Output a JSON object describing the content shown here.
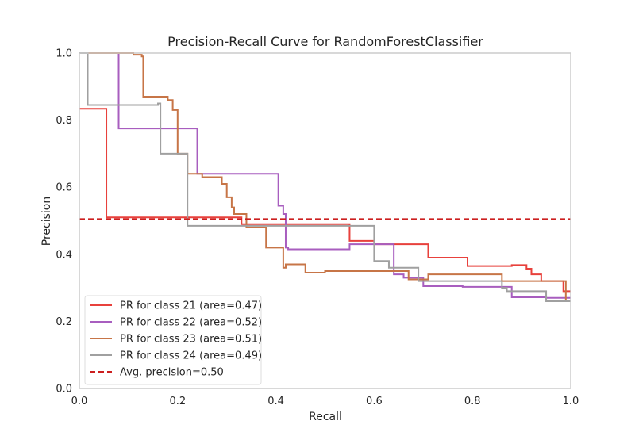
{
  "chart_data": {
    "type": "line",
    "title": "Precision-Recall Curve for RandomForestClassifier",
    "xlabel": "Recall",
    "ylabel": "Precision",
    "xlim": [
      0.0,
      1.0
    ],
    "ylim": [
      0.0,
      1.0
    ],
    "xticks": [
      "0.0",
      "0.2",
      "0.4",
      "0.6",
      "0.8",
      "1.0"
    ],
    "yticks": [
      "0.0",
      "0.2",
      "0.4",
      "0.6",
      "0.8",
      "1.0"
    ],
    "grid": false,
    "legend_position": "lower-left",
    "series": [
      {
        "name": "PR for class 21 (area=0.47)",
        "color": "#e8413c",
        "style": "step",
        "x": [
          0.0,
          0.055,
          0.055,
          0.33,
          0.33,
          0.55,
          0.55,
          0.6,
          0.6,
          0.71,
          0.71,
          0.79,
          0.79,
          0.88,
          0.88,
          0.91,
          0.91,
          0.92,
          0.92,
          0.94,
          0.94,
          0.985,
          0.985,
          1.0
        ],
        "y": [
          0.834,
          0.834,
          0.51,
          0.51,
          0.49,
          0.49,
          0.44,
          0.44,
          0.43,
          0.43,
          0.39,
          0.39,
          0.365,
          0.365,
          0.368,
          0.368,
          0.357,
          0.357,
          0.34,
          0.34,
          0.32,
          0.32,
          0.29,
          0.29
        ]
      },
      {
        "name": "PR for class 22 (area=0.52)",
        "color": "#a85ebf",
        "style": "step",
        "x": [
          0.0,
          0.08,
          0.08,
          0.24,
          0.24,
          0.405,
          0.405,
          0.415,
          0.415,
          0.42,
          0.42,
          0.425,
          0.425,
          0.55,
          0.55,
          0.64,
          0.64,
          0.66,
          0.66,
          0.7,
          0.7,
          0.78,
          0.78,
          0.88,
          0.88,
          0.95,
          0.95,
          0.985,
          0.985,
          1.0
        ],
        "y": [
          1.0,
          1.0,
          0.775,
          0.775,
          0.64,
          0.64,
          0.545,
          0.545,
          0.52,
          0.52,
          0.42,
          0.42,
          0.415,
          0.415,
          0.43,
          0.43,
          0.34,
          0.34,
          0.33,
          0.33,
          0.305,
          0.305,
          0.303,
          0.303,
          0.272,
          0.272,
          0.27,
          0.27,
          0.27,
          0.27
        ]
      },
      {
        "name": "PR for class 23 (area=0.51)",
        "color": "#c77547",
        "style": "step",
        "x": [
          0.0,
          0.11,
          0.11,
          0.127,
          0.127,
          0.13,
          0.13,
          0.18,
          0.18,
          0.19,
          0.19,
          0.2,
          0.2,
          0.22,
          0.22,
          0.25,
          0.25,
          0.29,
          0.29,
          0.3,
          0.3,
          0.31,
          0.31,
          0.315,
          0.315,
          0.34,
          0.34,
          0.38,
          0.38,
          0.415,
          0.415,
          0.42,
          0.42,
          0.46,
          0.46,
          0.5,
          0.5,
          0.67,
          0.67,
          0.71,
          0.71,
          0.86,
          0.86,
          0.99,
          0.99,
          1.0
        ],
        "y": [
          1.0,
          1.0,
          0.995,
          0.995,
          0.99,
          0.99,
          0.87,
          0.87,
          0.86,
          0.86,
          0.83,
          0.83,
          0.7,
          0.7,
          0.64,
          0.64,
          0.63,
          0.63,
          0.61,
          0.61,
          0.57,
          0.57,
          0.54,
          0.54,
          0.52,
          0.52,
          0.48,
          0.48,
          0.42,
          0.42,
          0.36,
          0.36,
          0.37,
          0.37,
          0.345,
          0.345,
          0.35,
          0.35,
          0.325,
          0.325,
          0.34,
          0.34,
          0.32,
          0.32,
          0.26,
          0.26
        ]
      },
      {
        "name": "PR for class 24 (area=0.49)",
        "color": "#a0a0a0",
        "style": "step",
        "x": [
          0.0,
          0.017,
          0.017,
          0.16,
          0.16,
          0.165,
          0.165,
          0.22,
          0.22,
          0.6,
          0.6,
          0.63,
          0.63,
          0.69,
          0.69,
          0.86,
          0.86,
          0.87,
          0.87,
          0.95,
          0.95,
          1.0
        ],
        "y": [
          1.0,
          1.0,
          0.845,
          0.845,
          0.85,
          0.85,
          0.7,
          0.7,
          0.485,
          0.485,
          0.38,
          0.38,
          0.36,
          0.36,
          0.32,
          0.32,
          0.3,
          0.3,
          0.29,
          0.29,
          0.26,
          0.26
        ]
      }
    ],
    "reference_line": {
      "name": "Avg. precision=0.50",
      "color": "#cc1f1f",
      "style": "dashed",
      "y": 0.505
    }
  }
}
